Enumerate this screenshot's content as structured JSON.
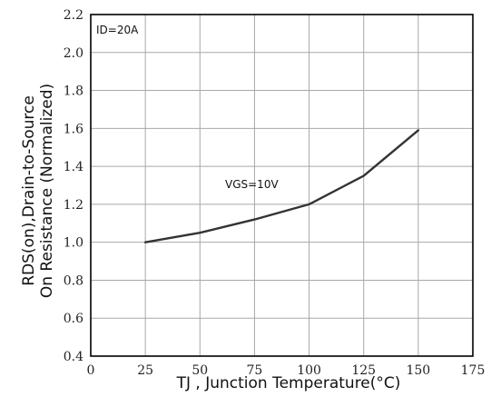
{
  "chart_data": {
    "type": "line",
    "title": "",
    "xlabel": "TJ , Junction Temperature(°C)",
    "ylabel": [
      "RDS(on),Drain-to-Source",
      "On Resistance (Normalized)"
    ],
    "xlim": [
      0,
      175
    ],
    "ylim": [
      0.4,
      2.2
    ],
    "x_ticks": [
      "0",
      "25",
      "50",
      "75",
      "100",
      "125",
      "150",
      "175"
    ],
    "y_ticks": [
      "0.4",
      "0.6",
      "0.8",
      "1.0",
      "1.2",
      "1.4",
      "1.6",
      "1.8",
      "2.0",
      "2.2"
    ],
    "grid": true,
    "series": [
      {
        "x": [
          25,
          50,
          75,
          100,
          125,
          150
        ],
        "y": [
          1.0,
          1.05,
          1.12,
          1.2,
          1.35,
          1.59
        ]
      }
    ],
    "annotations": [
      "ID=20A",
      "VGS=10V"
    ]
  },
  "colors": {
    "background": "#ffffff",
    "grid": "#a8a8a8",
    "frame": "#000000",
    "line": "#333333",
    "text": "#111111"
  }
}
